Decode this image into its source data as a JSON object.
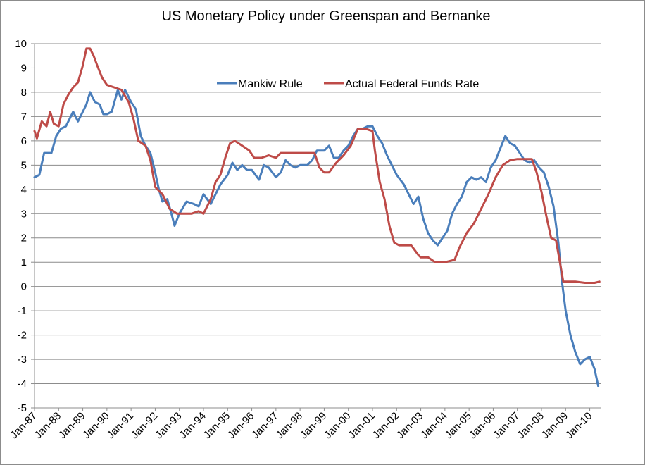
{
  "chart_data": {
    "type": "line",
    "title": "US Monetary Policy under Greenspan and Bernanke",
    "xlabel": "",
    "ylabel": "",
    "ylim": [
      -5,
      10
    ],
    "yticks": [
      10,
      9,
      8,
      7,
      6,
      5,
      4,
      3,
      2,
      1,
      0,
      -1,
      -2,
      -3,
      -4,
      -5
    ],
    "xlim": [
      1987.0,
      2010.45
    ],
    "x_tick_labels": [
      "Jan-87",
      "Jan-88",
      "Jan-89",
      "Jan-90",
      "Jan-91",
      "Jan-92",
      "Jan-93",
      "Jan-94",
      "Jan-95",
      "Jan-96",
      "Jan-97",
      "Jan-98",
      "Jan-99",
      "Jan-00",
      "Jan-01",
      "Jan-02",
      "Jan-03",
      "Jan-04",
      "Jan-05",
      "Jan-06",
      "Jan-07",
      "Jan-08",
      "Jan-09",
      "Jan-10"
    ],
    "x_tick_values": [
      1987,
      1988,
      1989,
      1990,
      1991,
      1992,
      1993,
      1994,
      1995,
      1996,
      1997,
      1998,
      1999,
      2000,
      2001,
      2002,
      2003,
      2004,
      2005,
      2006,
      2007,
      2008,
      2009,
      2010
    ],
    "grid": true,
    "legend_position": "top-center",
    "series": [
      {
        "name": "Mankiw Rule",
        "color": "#4a7ebb",
        "x": [
          1987.0,
          1987.2,
          1987.4,
          1987.7,
          1987.9,
          1988.1,
          1988.3,
          1988.6,
          1988.8,
          1989.0,
          1989.15,
          1989.3,
          1989.5,
          1989.7,
          1989.85,
          1990.0,
          1990.2,
          1990.45,
          1990.6,
          1990.75,
          1991.0,
          1991.2,
          1991.4,
          1991.6,
          1991.8,
          1992.0,
          1992.15,
          1992.3,
          1992.5,
          1992.7,
          1992.8,
          1993.0,
          1993.3,
          1993.6,
          1993.8,
          1994.0,
          1994.3,
          1994.5,
          1994.7,
          1995.0,
          1995.2,
          1995.4,
          1995.6,
          1995.8,
          1996.0,
          1996.3,
          1996.5,
          1996.7,
          1997.0,
          1997.2,
          1997.4,
          1997.6,
          1997.8,
          1998.0,
          1998.3,
          1998.5,
          1998.7,
          1999.0,
          1999.2,
          1999.4,
          1999.6,
          1999.8,
          2000.0,
          2000.2,
          2000.4,
          2000.6,
          2000.8,
          2001.0,
          2001.2,
          2001.4,
          2001.6,
          2001.8,
          2002.0,
          2002.3,
          2002.5,
          2002.7,
          2002.9,
          2003.1,
          2003.3,
          2003.5,
          2003.7,
          2003.9,
          2004.1,
          2004.3,
          2004.5,
          2004.7,
          2004.9,
          2005.1,
          2005.3,
          2005.5,
          2005.7,
          2005.9,
          2006.1,
          2006.3,
          2006.5,
          2006.7,
          2006.9,
          2007.1,
          2007.3,
          2007.5,
          2007.7,
          2007.9,
          2008.1,
          2008.3,
          2008.5,
          2008.7,
          2008.85,
          2009.0,
          2009.2,
          2009.4,
          2009.6,
          2009.8,
          2010.0,
          2010.2,
          2010.35
        ],
        "values": [
          4.5,
          4.6,
          5.5,
          5.5,
          6.2,
          6.5,
          6.6,
          7.2,
          6.8,
          7.2,
          7.5,
          8.0,
          7.6,
          7.5,
          7.1,
          7.1,
          7.2,
          8.1,
          7.7,
          8.1,
          7.6,
          7.3,
          6.2,
          5.8,
          5.5,
          4.7,
          4.0,
          3.5,
          3.6,
          2.9,
          2.5,
          3.0,
          3.5,
          3.4,
          3.3,
          3.8,
          3.4,
          3.8,
          4.2,
          4.6,
          5.1,
          4.8,
          5.0,
          4.8,
          4.8,
          4.4,
          5.0,
          4.9,
          4.5,
          4.7,
          5.2,
          5.0,
          4.9,
          5.0,
          5.0,
          5.2,
          5.6,
          5.6,
          5.8,
          5.3,
          5.3,
          5.6,
          5.8,
          6.2,
          6.5,
          6.5,
          6.6,
          6.6,
          6.2,
          5.9,
          5.4,
          5.0,
          4.6,
          4.2,
          3.8,
          3.4,
          3.7,
          2.8,
          2.2,
          1.9,
          1.7,
          2.0,
          2.3,
          3.0,
          3.4,
          3.7,
          4.3,
          4.5,
          4.4,
          4.5,
          4.3,
          4.9,
          5.2,
          5.7,
          6.2,
          5.9,
          5.8,
          5.5,
          5.2,
          5.1,
          5.2,
          4.9,
          4.7,
          4.1,
          3.3,
          1.8,
          0.2,
          -1.0,
          -2.0,
          -2.7,
          -3.2,
          -3.0,
          -2.9,
          -3.4,
          -4.1
        ]
      },
      {
        "name": "Actual Federal Funds Rate",
        "color": "#be4b48",
        "x": [
          1987.0,
          1987.1,
          1987.3,
          1987.5,
          1987.65,
          1987.8,
          1988.0,
          1988.2,
          1988.4,
          1988.6,
          1988.8,
          1989.0,
          1989.15,
          1989.3,
          1989.45,
          1989.6,
          1989.8,
          1990.0,
          1990.3,
          1990.6,
          1990.9,
          1991.1,
          1991.3,
          1991.6,
          1991.8,
          1992.0,
          1992.3,
          1992.6,
          1992.9,
          1993.2,
          1993.5,
          1993.8,
          1994.0,
          1994.3,
          1994.5,
          1994.7,
          1994.9,
          1995.1,
          1995.3,
          1995.6,
          1995.9,
          1996.1,
          1996.4,
          1996.7,
          1997.0,
          1997.2,
          1997.5,
          1997.8,
          1998.0,
          1998.3,
          1998.6,
          1998.8,
          1999.0,
          1999.2,
          1999.5,
          1999.8,
          2000.1,
          2000.4,
          2000.7,
          2001.0,
          2001.1,
          2001.3,
          2001.5,
          2001.7,
          2001.9,
          2002.1,
          2002.3,
          2002.6,
          2002.9,
          2003.0,
          2003.3,
          2003.6,
          2003.8,
          2004.0,
          2004.4,
          2004.6,
          2004.9,
          2005.2,
          2005.5,
          2005.8,
          2006.1,
          2006.4,
          2006.7,
          2007.0,
          2007.3,
          2007.6,
          2007.8,
          2008.0,
          2008.2,
          2008.4,
          2008.6,
          2008.8,
          2008.9,
          2009.0,
          2009.4,
          2009.8,
          2010.2,
          2010.4
        ],
        "values": [
          6.4,
          6.1,
          6.8,
          6.6,
          7.2,
          6.7,
          6.6,
          7.5,
          7.9,
          8.2,
          8.4,
          9.1,
          9.8,
          9.8,
          9.5,
          9.1,
          8.6,
          8.3,
          8.2,
          8.1,
          7.6,
          6.9,
          6.0,
          5.8,
          5.2,
          4.1,
          3.8,
          3.2,
          3.0,
          3.0,
          3.0,
          3.1,
          3.0,
          3.6,
          4.3,
          4.6,
          5.3,
          5.9,
          6.0,
          5.8,
          5.6,
          5.3,
          5.3,
          5.4,
          5.3,
          5.5,
          5.5,
          5.5,
          5.5,
          5.5,
          5.5,
          4.9,
          4.7,
          4.7,
          5.1,
          5.4,
          5.8,
          6.5,
          6.5,
          6.4,
          5.6,
          4.3,
          3.6,
          2.5,
          1.8,
          1.7,
          1.7,
          1.7,
          1.3,
          1.2,
          1.2,
          1.0,
          1.0,
          1.0,
          1.1,
          1.6,
          2.2,
          2.6,
          3.2,
          3.8,
          4.5,
          5.0,
          5.2,
          5.25,
          5.25,
          5.25,
          4.7,
          3.9,
          2.9,
          2.0,
          1.9,
          0.8,
          0.2,
          0.2,
          0.2,
          0.15,
          0.15,
          0.2
        ]
      }
    ]
  }
}
